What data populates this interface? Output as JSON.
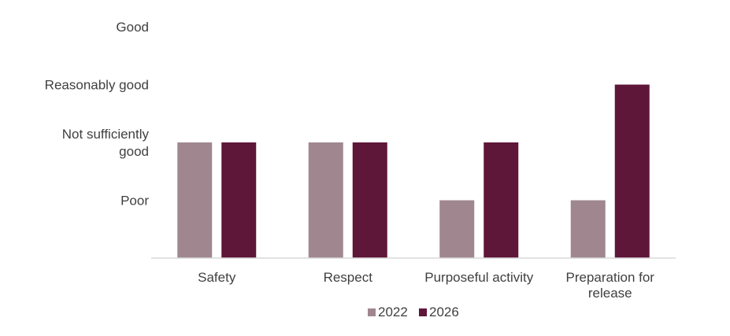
{
  "chart_data": {
    "type": "bar",
    "categories": [
      "Safety",
      "Respect",
      "Purposeful activity",
      "Preparation for release"
    ],
    "y_levels": [
      "Poor",
      "Not sufficiently good",
      "Reasonably good",
      "Good"
    ],
    "series": [
      {
        "name": "2022",
        "color": "#a0878f",
        "values": [
          2,
          2,
          1,
          1
        ]
      },
      {
        "name": "2026",
        "color": "#5e1639",
        "values": [
          2,
          2,
          2,
          3
        ]
      }
    ],
    "ylim": [
      0,
      4
    ],
    "grid": false,
    "legend": "bottom-center",
    "title": "",
    "xlabel": "",
    "ylabel": ""
  }
}
